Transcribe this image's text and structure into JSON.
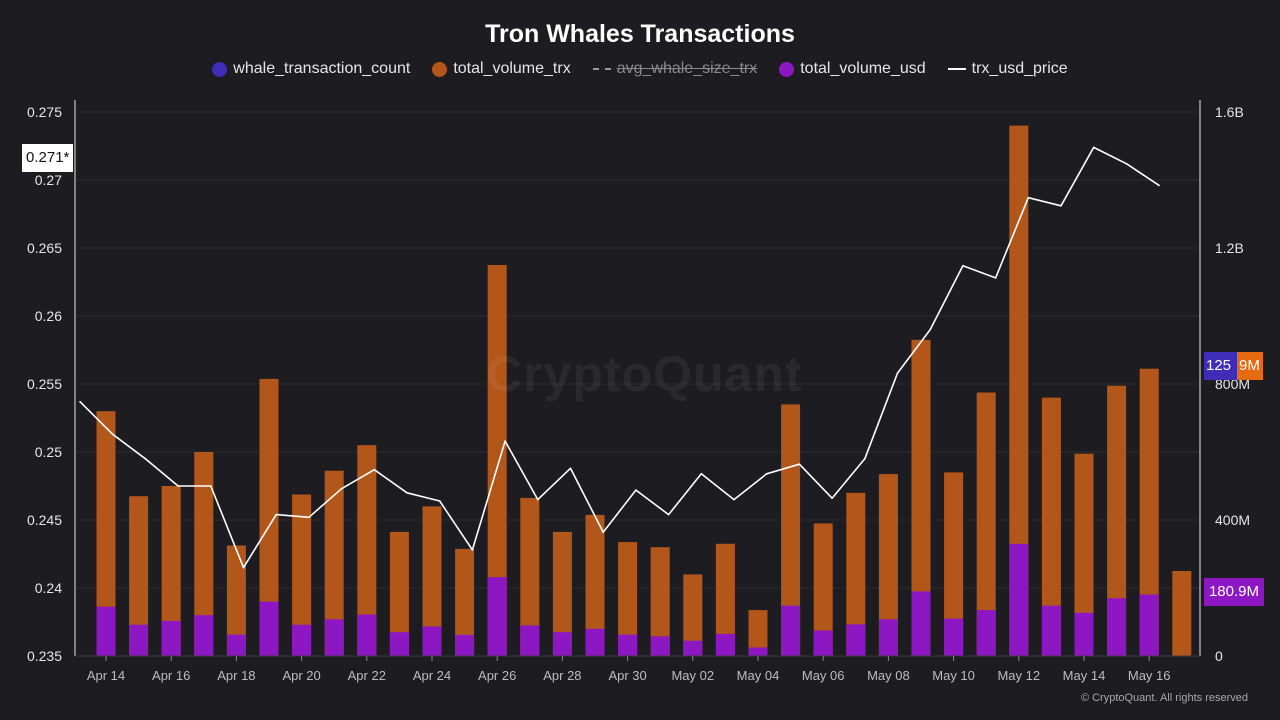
{
  "chart_data": {
    "type": "bar",
    "title": "Tron Whales Transactions",
    "legend": [
      {
        "name": "whale_transaction_count",
        "color": "#3f2db8",
        "style": "dot",
        "hidden": false
      },
      {
        "name": "total_volume_trx",
        "color": "#b3561a",
        "style": "dot",
        "hidden": false
      },
      {
        "name": "avg_whale_size_trx",
        "color": "#9a9a9a",
        "style": "dash",
        "hidden": true
      },
      {
        "name": "total_volume_usd",
        "color": "#8e17c4",
        "style": "dot",
        "hidden": false
      },
      {
        "name": "trx_usd_price",
        "color": "#ffffff",
        "style": "line",
        "hidden": false
      }
    ],
    "left_axis": {
      "ylim": [
        0.235,
        0.275
      ],
      "ticks": [
        "0.235",
        "0.24",
        "0.245",
        "0.25",
        "0.255",
        "0.26",
        "0.265",
        "0.27",
        "0.275"
      ]
    },
    "right_axis": {
      "ylim": [
        0,
        1600000000
      ],
      "ticks": [
        "0",
        "400M",
        "800M",
        "1.2B",
        "1.6B"
      ]
    },
    "x_tick_labels": [
      "Apr 14",
      "Apr 16",
      "Apr 18",
      "Apr 20",
      "Apr 22",
      "Apr 24",
      "Apr 26",
      "Apr 28",
      "Apr 30",
      "May 02",
      "May 04",
      "May 06",
      "May 08",
      "May 10",
      "May 12",
      "May 14",
      "May 16"
    ],
    "series": [
      {
        "name": "total_volume_trx",
        "axis": "right",
        "color": "#b3561a",
        "values": [
          720000000,
          470000000,
          500000000,
          600000000,
          325000000,
          815000000,
          475000000,
          545000000,
          620000000,
          365000000,
          440000000,
          315000000,
          1150000000,
          465000000,
          365000000,
          415000000,
          335000000,
          320000000,
          240000000,
          330000000,
          135000000,
          740000000,
          390000000,
          480000000,
          535000000,
          930000000,
          540000000,
          775000000,
          1560000000,
          760000000,
          595000000,
          795000000,
          845000000,
          250000000
        ]
      },
      {
        "name": "total_volume_usd",
        "axis": "right",
        "color": "#8e17c4",
        "values": [
          145000000,
          92000000,
          103000000,
          120000000,
          63000000,
          160000000,
          92000000,
          108000000,
          122000000,
          70000000,
          87000000,
          62000000,
          232000000,
          90000000,
          70000000,
          80000000,
          63000000,
          58000000,
          45000000,
          65000000,
          25000000,
          148000000,
          75000000,
          93000000,
          108000000,
          190000000,
          110000000,
          135000000,
          330000000,
          148000000,
          127000000,
          170000000,
          180900000,
          0
        ]
      },
      {
        "name": "trx_usd_price",
        "axis": "left",
        "color": "#ffffff",
        "values": [
          0.2537,
          0.2513,
          0.2495,
          0.2475,
          0.2475,
          0.2415,
          0.2454,
          0.2452,
          0.2473,
          0.2487,
          0.247,
          0.2464,
          0.2428,
          0.2508,
          0.2465,
          0.2488,
          0.2441,
          0.2472,
          0.2454,
          0.2484,
          0.2465,
          0.2484,
          0.2491,
          0.2466,
          0.2495,
          0.2558,
          0.259,
          0.2637,
          0.2628,
          0.2687,
          0.2681,
          0.2724,
          0.2712,
          0.2696
        ]
      }
    ],
    "current_values": {
      "trx_usd_price": "0.271*",
      "whale_transaction_count": "125",
      "total_volume_trx": "9M",
      "total_volume_usd": "180.9M"
    }
  },
  "watermark": "CryptoQuant",
  "copyright": "© CryptoQuant. All rights reserved"
}
